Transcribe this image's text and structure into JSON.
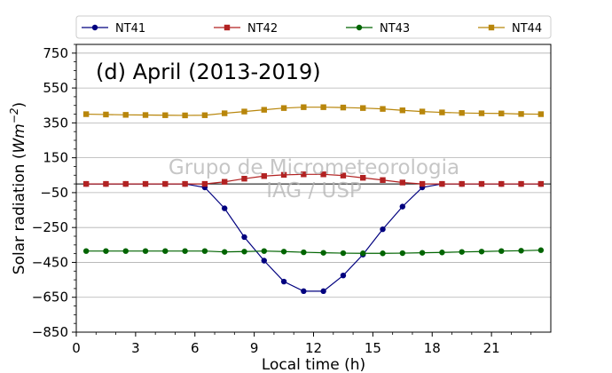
{
  "chart_data": {
    "type": "line",
    "title": "(d) April (2013-2019)",
    "watermark": [
      "Grupo de Micrometeorologia",
      "IAG / USP"
    ],
    "xlabel": "Local time (h)",
    "ylabel": "Solar radiation (Wm⁻²)",
    "xlim": [
      0,
      24
    ],
    "ylim": [
      -850,
      800
    ],
    "xticks": [
      0,
      3,
      6,
      9,
      12,
      15,
      18,
      21
    ],
    "xtick_labels": [
      "0",
      "3",
      "6",
      "9",
      "12",
      "15",
      "18",
      "21"
    ],
    "yticks": [
      -850,
      -650,
      -450,
      -250,
      -50,
      150,
      350,
      550,
      750
    ],
    "ytick_labels": [
      "−850",
      "−650",
      "−450",
      "−250",
      "−50",
      "150",
      "350",
      "550",
      "750"
    ],
    "grid": "horizontal",
    "legend_position": "top",
    "reference_line": 0,
    "x": [
      0.5,
      1.5,
      2.5,
      3.5,
      4.5,
      5.5,
      6.5,
      7.5,
      8.5,
      9.5,
      10.5,
      11.5,
      12.5,
      13.5,
      14.5,
      15.5,
      16.5,
      17.5,
      18.5,
      19.5,
      20.5,
      21.5,
      22.5,
      23.5
    ],
    "series": [
      {
        "name": "NT41",
        "color": "#00007f",
        "marker": "circle",
        "values": [
          0,
          0,
          0,
          0,
          0,
          0,
          -20,
          -140,
          -305,
          -440,
          -560,
          -615,
          -615,
          -525,
          -405,
          -260,
          -130,
          -20,
          0,
          0,
          0,
          0,
          0,
          0
        ]
      },
      {
        "name": "NT42",
        "color": "#b22222",
        "marker": "square",
        "values": [
          0,
          0,
          0,
          0,
          0,
          0,
          0,
          12,
          30,
          45,
          52,
          55,
          55,
          48,
          35,
          22,
          8,
          0,
          0,
          0,
          0,
          0,
          0,
          0
        ]
      },
      {
        "name": "NT43",
        "color": "#006400",
        "marker": "circle",
        "values": [
          -385,
          -385,
          -385,
          -385,
          -385,
          -385,
          -385,
          -390,
          -388,
          -385,
          -388,
          -392,
          -395,
          -397,
          -398,
          -398,
          -397,
          -395,
          -393,
          -390,
          -388,
          -385,
          -383,
          -380
        ]
      },
      {
        "name": "NT44",
        "color": "#b8860b",
        "marker": "square",
        "values": [
          400,
          398,
          396,
          395,
          394,
          393,
          394,
          405,
          415,
          425,
          435,
          440,
          440,
          438,
          435,
          430,
          422,
          415,
          410,
          407,
          405,
          404,
          401,
          400
        ]
      }
    ]
  }
}
